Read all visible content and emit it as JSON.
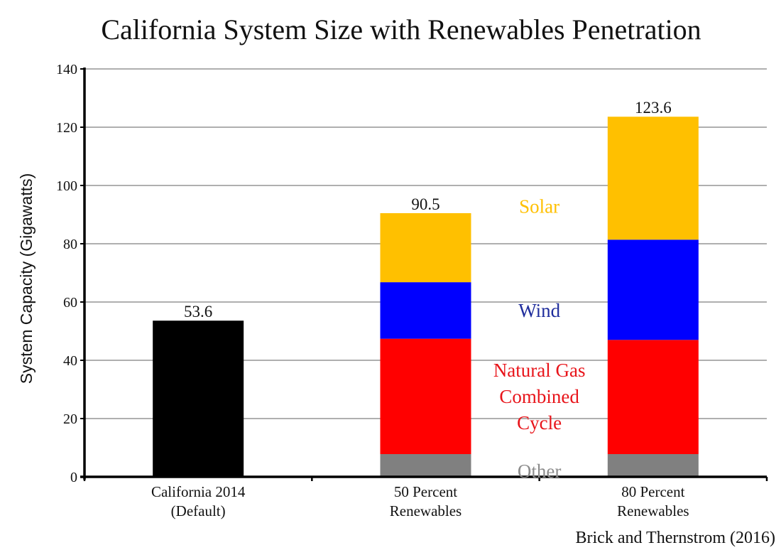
{
  "chart_data": {
    "type": "bar",
    "stacked": true,
    "title": "California System Size with Renewables Penetration",
    "ylabel": "System Capacity (Gigawatts)",
    "xlabel": "",
    "ylim": [
      0,
      140
    ],
    "yticks": [
      0,
      20,
      40,
      60,
      80,
      100,
      120,
      140
    ],
    "grid": true,
    "categories": [
      [
        "California 2014",
        "(Default)"
      ],
      [
        "50 Percent",
        "Renewables"
      ],
      [
        "80 Percent",
        "Renewables"
      ]
    ],
    "bars": [
      {
        "total_label": "53.6",
        "segments": [
          {
            "series": "California 2014",
            "value": 53.6
          }
        ]
      },
      {
        "total_label": "90.5",
        "segments": [
          {
            "series": "Other",
            "value": 7.8
          },
          {
            "series": "Natural Gas Combined Cycle",
            "value": 39.6
          },
          {
            "series": "Wind",
            "value": 19.4
          },
          {
            "series": "Solar",
            "value": 23.7
          }
        ]
      },
      {
        "total_label": "123.6",
        "segments": [
          {
            "series": "Other",
            "value": 7.8
          },
          {
            "series": "Natural Gas Combined Cycle",
            "value": 39.2
          },
          {
            "series": "Wind",
            "value": 34.4
          },
          {
            "series": "Solar",
            "value": 42.2
          }
        ]
      }
    ],
    "series_colors": {
      "California 2014": "#000000",
      "Other": "#808080",
      "Natural Gas Combined Cycle": "#ff0000",
      "Wind": "#0000ff",
      "Solar": "#ffc000"
    },
    "segment_labels": [
      {
        "series": "Solar",
        "lines": [
          "Solar"
        ],
        "color": "#ffc000"
      },
      {
        "series": "Wind",
        "lines": [
          "Wind"
        ],
        "color": "#1f2d9c"
      },
      {
        "series": "Natural Gas Combined Cycle",
        "lines": [
          "Natural Gas",
          "Combined",
          "Cycle"
        ],
        "color": "#e8141a"
      },
      {
        "series": "Other",
        "lines": [
          "Other"
        ],
        "color": "#8c8c8c"
      }
    ],
    "source": "Brick and Thernstrom (2016)"
  }
}
